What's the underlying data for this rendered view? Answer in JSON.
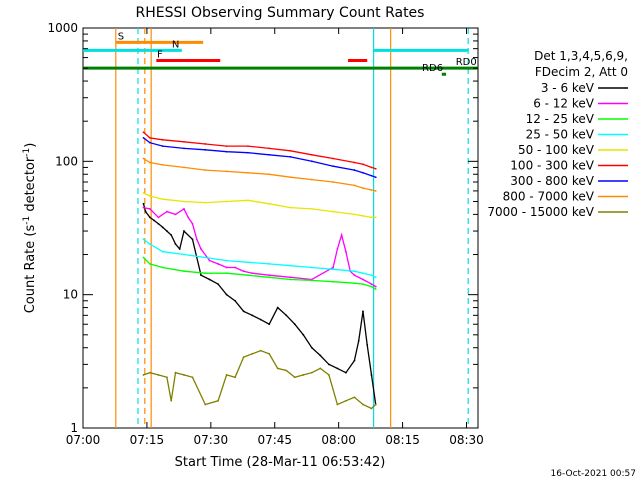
{
  "chart_data": {
    "type": "line",
    "title": "RHESSI Observing Summary Count Rates",
    "xlabel": "Start Time (28-Mar-11 06:53:42)",
    "ylabel_main": "Count Rate (s",
    "ylabel_sup1": "-1",
    "ylabel_mid": " detector",
    "ylabel_sup2": "-1",
    "ylabel_end": ")",
    "y_scale": "log",
    "ylim": [
      1,
      1000
    ],
    "xlim_minutes": [
      6.3,
      99
    ],
    "x_ticks": [
      {
        "label": "07:00",
        "m": 6.3
      },
      {
        "label": "07:15",
        "m": 21.3
      },
      {
        "label": "07:30",
        "m": 36.3
      },
      {
        "label": "07:45",
        "m": 51.3
      },
      {
        "label": "08:00",
        "m": 66.3
      },
      {
        "label": "08:15",
        "m": 81.3
      },
      {
        "label": "08:30",
        "m": 96.3
      }
    ],
    "y_ticks": [
      {
        "label": "1",
        "v": 1
      },
      {
        "label": "10",
        "v": 10
      },
      {
        "label": "100",
        "v": 100
      },
      {
        "label": "1000",
        "v": 1000
      }
    ],
    "legend": {
      "header1": "Det 1,3,4,5,6,9,",
      "header2": "FDecim 2, Att 0",
      "placement": "right"
    },
    "series": [
      {
        "name": "3 - 6 keV",
        "color": "#000000",
        "x": [
          20.5,
          21,
          22,
          23,
          24,
          25,
          26,
          27,
          28,
          29,
          30,
          32,
          34,
          36,
          38,
          40,
          42,
          44,
          46,
          48,
          50,
          52,
          54,
          56,
          58,
          60,
          62,
          64,
          66,
          68,
          70,
          71,
          72,
          73,
          74,
          75
        ],
        "y": [
          48,
          42,
          38,
          36,
          34,
          32,
          30,
          28,
          24,
          22,
          30,
          26,
          14,
          13,
          12,
          10,
          9,
          7.5,
          7,
          6.5,
          6,
          8,
          7,
          6,
          5,
          4,
          3.5,
          3,
          2.8,
          2.6,
          3.2,
          4.5,
          7.5,
          4.2,
          2.5,
          1.5
        ]
      },
      {
        "name": "6 - 12 keV",
        "color": "#ff00ff",
        "x": [
          20.5,
          22,
          24,
          26,
          28,
          30,
          31,
          32,
          33,
          34,
          36,
          38,
          40,
          42,
          44,
          46,
          50,
          55,
          60,
          65,
          66,
          67,
          68,
          69,
          70,
          72,
          74,
          75
        ],
        "y": [
          45,
          44,
          38,
          42,
          40,
          44,
          38,
          34,
          26,
          22,
          18,
          17,
          16,
          16,
          15,
          14.5,
          14,
          13.5,
          13,
          16,
          22,
          28,
          21,
          15,
          14,
          13,
          12,
          11.5
        ]
      },
      {
        "name": "12 - 25 keV",
        "color": "#00ff00",
        "x": [
          20.5,
          22,
          25,
          30,
          35,
          40,
          45,
          50,
          55,
          60,
          65,
          70,
          72,
          74,
          75
        ],
        "y": [
          19,
          17,
          16,
          15,
          14.5,
          14.5,
          14,
          13.5,
          13,
          12.8,
          12.5,
          12.2,
          12,
          11.5,
          11
        ]
      },
      {
        "name": "25 - 50 keV",
        "color": "#00ffff",
        "x": [
          20.5,
          22,
          25,
          30,
          35,
          40,
          45,
          50,
          55,
          60,
          65,
          70,
          72,
          74,
          75
        ],
        "y": [
          26,
          24,
          21,
          20,
          19,
          18,
          17.5,
          17,
          16.5,
          16,
          15.5,
          15,
          14.5,
          14,
          13.5
        ]
      },
      {
        "name": "50 - 100 keV",
        "color": "#e6e600",
        "x": [
          20.5,
          22,
          25,
          30,
          35,
          40,
          45,
          50,
          55,
          60,
          65,
          70,
          72,
          74,
          75
        ],
        "y": [
          58,
          55,
          52,
          50,
          49,
          50,
          51,
          48,
          45,
          44,
          42,
          40,
          39,
          38,
          38
        ]
      },
      {
        "name": "100 - 300 keV",
        "color": "#ff0000",
        "x": [
          20.5,
          22,
          25,
          30,
          35,
          40,
          45,
          50,
          55,
          60,
          65,
          70,
          72,
          74,
          75
        ],
        "y": [
          165,
          150,
          145,
          140,
          135,
          130,
          130,
          125,
          120,
          112,
          105,
          98,
          95,
          90,
          88
        ]
      },
      {
        "name": "300 - 800 keV",
        "color": "#0000ff",
        "x": [
          20.5,
          22,
          25,
          30,
          35,
          40,
          45,
          50,
          55,
          60,
          65,
          70,
          72,
          74,
          75
        ],
        "y": [
          150,
          138,
          130,
          125,
          122,
          118,
          116,
          112,
          108,
          100,
          92,
          86,
          82,
          78,
          76
        ]
      },
      {
        "name": "800 - 7000 keV",
        "color": "#ff8c00",
        "x": [
          20.5,
          22,
          25,
          30,
          35,
          40,
          45,
          50,
          55,
          60,
          65,
          70,
          72,
          74,
          75
        ],
        "y": [
          105,
          98,
          94,
          90,
          86,
          84,
          82,
          80,
          76,
          73,
          70,
          66,
          63,
          61,
          60
        ]
      },
      {
        "name": "7000 - 15000 keV",
        "color": "#808000",
        "x": [
          20.5,
          22,
          24,
          26,
          27,
          28,
          30,
          32,
          35,
          38,
          40,
          42,
          44,
          46,
          48,
          50,
          52,
          54,
          56,
          58,
          60,
          62,
          64,
          66,
          68,
          70,
          72,
          74,
          75
        ],
        "y": [
          2.5,
          2.6,
          2.5,
          2.4,
          1.6,
          2.6,
          2.5,
          2.4,
          1.5,
          1.6,
          2.5,
          2.4,
          3.4,
          3.6,
          3.8,
          3.6,
          2.8,
          2.7,
          2.4,
          2.5,
          2.6,
          2.8,
          2.5,
          1.5,
          1.6,
          1.7,
          1.5,
          1.4,
          1.5
        ]
      }
    ],
    "vlines": [
      {
        "m": 14.0,
        "color": "#ff8c00",
        "style": "solid"
      },
      {
        "m": 20.8,
        "color": "#ff8c00",
        "style": "dashed"
      },
      {
        "m": 19.2,
        "color": "#00e0e0",
        "style": "dashed"
      },
      {
        "m": 22.3,
        "color": "#ff8c00",
        "style": "solid"
      },
      {
        "m": 74.5,
        "color": "#00e0e0",
        "style": "solid"
      },
      {
        "m": 96.7,
        "color": "#00e0e0",
        "style": "dashed"
      },
      {
        "m": 78.5,
        "color": "#ff8c00",
        "style": "solid"
      }
    ],
    "flag_bars": [
      {
        "label": "S",
        "color": "#ff8c00",
        "m0": 14.0,
        "m1": 34.5,
        "v": 780,
        "label_m": 14.0
      },
      {
        "label": "N",
        "color": "#00e0e0",
        "m0": 6.3,
        "m1": 29.5,
        "v": 680,
        "label_m": 26.7
      },
      {
        "label": "",
        "color": "#00e0e0",
        "m0": 74.5,
        "m1": 96.7,
        "v": 680,
        "label_m": 74.5
      },
      {
        "label": "F",
        "color": "#ff0000",
        "m0": 23.5,
        "m1": 38.5,
        "v": 570,
        "label_m": 23.2
      },
      {
        "label": "",
        "color": "#ff0000",
        "m0": 68.5,
        "m1": 73.0,
        "v": 570,
        "label_m": 68.5
      },
      {
        "label": "RD0",
        "color": "#008000",
        "m0": 6.3,
        "m1": 99,
        "v": 500,
        "label_m": 93.3
      },
      {
        "label": "RD6",
        "color": "#008000",
        "m0": 90.5,
        "m1": 91.5,
        "v": 450,
        "label_m": 85.4
      }
    ],
    "timestamp": "16-Oct-2021 00:57"
  }
}
